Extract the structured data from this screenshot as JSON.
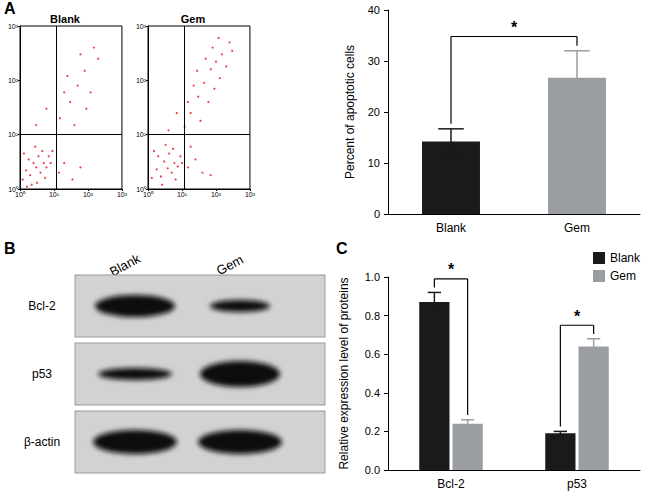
{
  "panel_labels": [
    "A",
    "B",
    "C"
  ],
  "chart_data": [
    {
      "type": "scatter",
      "title": "Blank",
      "log": true,
      "xlim": [
        1,
        1000
      ],
      "ylim": [
        1,
        1000
      ],
      "xticks": [
        {
          "value": 1,
          "label": "10⁰"
        },
        {
          "value": 10,
          "label": "10¹"
        },
        {
          "value": 100,
          "label": "10²"
        },
        {
          "value": 1000,
          "label": "10³"
        }
      ],
      "yticks": [
        {
          "value": 1,
          "label": "10⁰"
        },
        {
          "value": 10,
          "label": "10¹"
        },
        {
          "value": 100,
          "label": "10²"
        },
        {
          "value": 1000,
          "label": "10³"
        }
      ],
      "color": "#e3141c",
      "marker": "circle",
      "grid": false,
      "gate": {
        "x": 12,
        "y": 10
      },
      "x": [
        1.2,
        1.5,
        2,
        2.5,
        3,
        1.8,
        4,
        3.5,
        5,
        2.2,
        6,
        4.5,
        1.3,
        7,
        2.8,
        5.5,
        8,
        3.2,
        1.6,
        9,
        14,
        20,
        35,
        60,
        3,
        6,
        15,
        30,
        50,
        80,
        120,
        200,
        25,
        40,
        90,
        150,
        60,
        20
      ],
      "y": [
        1.5,
        2.2,
        1.8,
        3,
        2.5,
        3.5,
        2,
        4,
        3,
        1.2,
        2.5,
        5,
        4.5,
        4,
        6,
        1.6,
        3,
        1.3,
        1.1,
        5,
        2,
        3,
        1.5,
        2.5,
        15,
        30,
        20,
        40,
        80,
        150,
        60,
        250,
        120,
        15,
        30,
        400,
        300,
        60
      ]
    },
    {
      "type": "scatter",
      "title": "Gem",
      "log": true,
      "xlim": [
        1,
        1000
      ],
      "ylim": [
        1,
        1000
      ],
      "xticks": [
        {
          "value": 1,
          "label": "10⁰"
        },
        {
          "value": 10,
          "label": "10¹"
        },
        {
          "value": 100,
          "label": "10²"
        },
        {
          "value": 1000,
          "label": "10³"
        }
      ],
      "yticks": [
        {
          "value": 1,
          "label": "10⁰"
        },
        {
          "value": 10,
          "label": "10¹"
        },
        {
          "value": 100,
          "label": "10²"
        },
        {
          "value": 1000,
          "label": "10³"
        }
      ],
      "color": "#e3141c",
      "marker": "circle",
      "grid": false,
      "gate": {
        "x": 12,
        "y": 10
      },
      "x": [
        1.3,
        1.8,
        2.4,
        3,
        3.8,
        2,
        5,
        4.2,
        6,
        2.6,
        7.5,
        5.5,
        1.5,
        9,
        3.3,
        6.5,
        10,
        15,
        25,
        40,
        70,
        18,
        4,
        7,
        12,
        18,
        30,
        45,
        70,
        100,
        150,
        250,
        35,
        60,
        90,
        130,
        200,
        22,
        50,
        80,
        300,
        15,
        28,
        120
      ],
      "y": [
        1.6,
        2.3,
        1.7,
        3.2,
        2.4,
        4,
        2,
        4.5,
        3,
        1.2,
        2.6,
        5.5,
        5,
        4,
        6.5,
        1.5,
        3,
        2.5,
        3.5,
        2,
        1.8,
        6,
        12,
        25,
        14,
        25,
        50,
        90,
        160,
        220,
        300,
        500,
        18,
        40,
        70,
        110,
        180,
        80,
        250,
        400,
        350,
        40,
        150,
        600
      ]
    },
    {
      "type": "bar",
      "categories": [
        "Blank",
        "Gem"
      ],
      "values": [
        14.2,
        26.7
      ],
      "errors": [
        2.5,
        5.3
      ],
      "colors": [
        "#1a1a1a",
        "#9a9da1"
      ],
      "ylim": [
        0,
        40
      ],
      "yticks": [
        0,
        10,
        20,
        30,
        40
      ],
      "grid": false,
      "y_label": "Percent of apoptotic cells",
      "significance": [
        {
          "between": [
            "Blank",
            "Gem"
          ],
          "label": "*"
        }
      ]
    },
    {
      "type": "bar",
      "categories": [
        "Bcl-2",
        "p53"
      ],
      "series": [
        {
          "name": "Blank",
          "color": "#1a1a1a",
          "values": [
            0.87,
            0.19
          ],
          "errors": [
            0.05,
            0.01
          ]
        },
        {
          "name": "Gem",
          "color": "#9a9da1",
          "values": [
            0.24,
            0.64
          ],
          "errors": [
            0.02,
            0.04
          ]
        }
      ],
      "ylim": [
        0,
        1
      ],
      "yticks": [
        {
          "value": 0,
          "label": "0.0"
        },
        0.2,
        0.4,
        0.6,
        0.8,
        {
          "value": 1,
          "label": "1.0"
        }
      ],
      "grid": false,
      "legend": "top-right",
      "y_label": "Relative expression level of proteins",
      "significance": [
        {
          "category": "Bcl-2",
          "label": "*"
        },
        {
          "category": "p53",
          "label": "*"
        }
      ]
    }
  ],
  "blot": {
    "lanes": [
      "Blank",
      "Gem"
    ],
    "rows": [
      "Bcl-2",
      "p53",
      "β-actin"
    ]
  }
}
